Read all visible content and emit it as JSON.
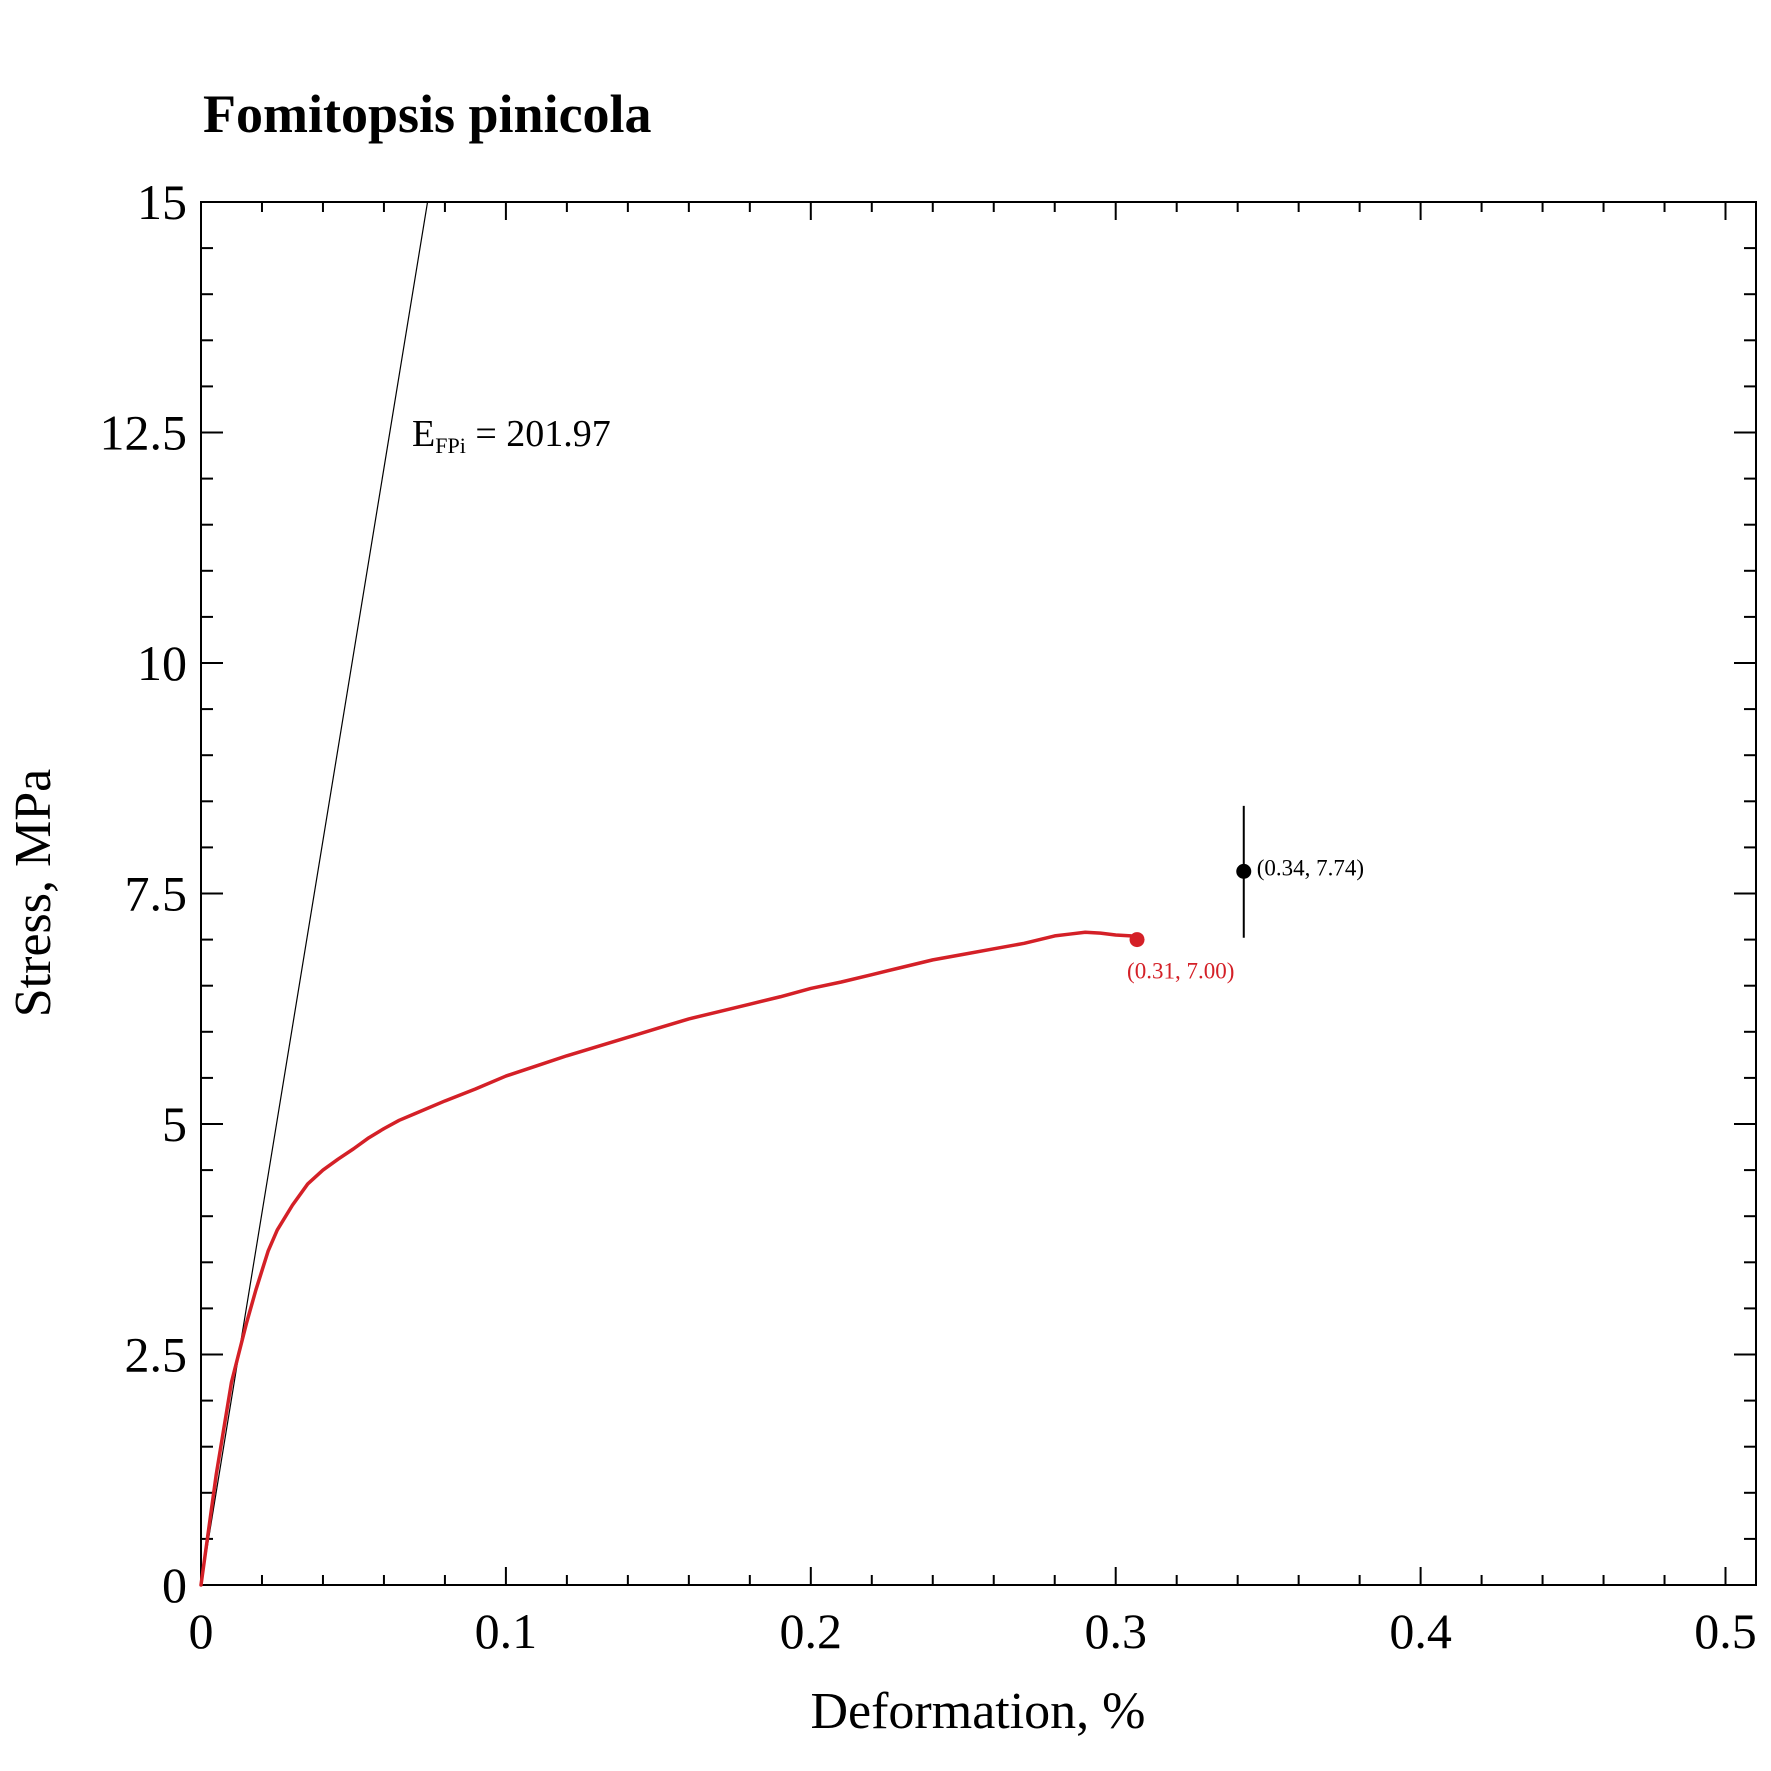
{
  "chart_data": {
    "type": "line",
    "title": "Fomitopsis pinicola",
    "xlabel": "Deformation, %",
    "ylabel": "Stress, MPa",
    "xlim": [
      0,
      0.51
    ],
    "ylim": [
      0,
      15
    ],
    "x_ticks": [
      0,
      0.1,
      0.2,
      0.3,
      0.4,
      0.5
    ],
    "x_tick_labels": [
      "0",
      "0.1",
      "0.2",
      "0.3",
      "0.4",
      "0.5"
    ],
    "y_ticks": [
      0,
      2.5,
      5,
      7.5,
      10,
      12.5,
      15
    ],
    "y_tick_labels": [
      "0",
      "2.5",
      "5",
      "7.5",
      "10",
      "12.5",
      "15"
    ],
    "grid": false,
    "colors": {
      "curve": "#d42027",
      "modulus_line": "#000000",
      "mean_point": "#000000",
      "axes": "#000000"
    },
    "series": [
      {
        "color": "#d42027",
        "x": [
          0,
          0.005,
          0.01,
          0.015,
          0.018,
          0.022,
          0.025,
          0.03,
          0.035,
          0.04,
          0.045,
          0.05,
          0.055,
          0.06,
          0.065,
          0.07,
          0.08,
          0.09,
          0.1,
          0.11,
          0.12,
          0.13,
          0.14,
          0.15,
          0.16,
          0.17,
          0.18,
          0.19,
          0.2,
          0.21,
          0.22,
          0.23,
          0.24,
          0.25,
          0.26,
          0.27,
          0.28,
          0.285,
          0.29,
          0.295,
          0.3,
          0.305,
          0.307
        ],
        "y": [
          0,
          1.2,
          2.2,
          2.85,
          3.2,
          3.62,
          3.85,
          4.12,
          4.35,
          4.5,
          4.62,
          4.73,
          4.85,
          4.95,
          5.04,
          5.11,
          5.25,
          5.38,
          5.52,
          5.63,
          5.74,
          5.84,
          5.94,
          6.04,
          6.14,
          6.22,
          6.3,
          6.38,
          6.47,
          6.54,
          6.62,
          6.7,
          6.78,
          6.84,
          6.9,
          6.96,
          7.04,
          7.06,
          7.08,
          7.07,
          7.05,
          7.04,
          7.0
        ]
      }
    ],
    "modulus_line": {
      "label_main": "E",
      "label_sub": "FPi",
      "label_value": " = 201.97",
      "x": [
        0,
        0.0743
      ],
      "y": [
        0,
        15
      ]
    },
    "endpoint": {
      "x": 0.307,
      "y": 7.0,
      "label": "(0.31, 7.00)",
      "color": "#d42027"
    },
    "mean_point": {
      "x": 0.342,
      "y": 7.74,
      "y_err_low": 7.02,
      "y_err_high": 8.45,
      "label": "(0.34, 7.74)",
      "color": "#000000"
    }
  }
}
